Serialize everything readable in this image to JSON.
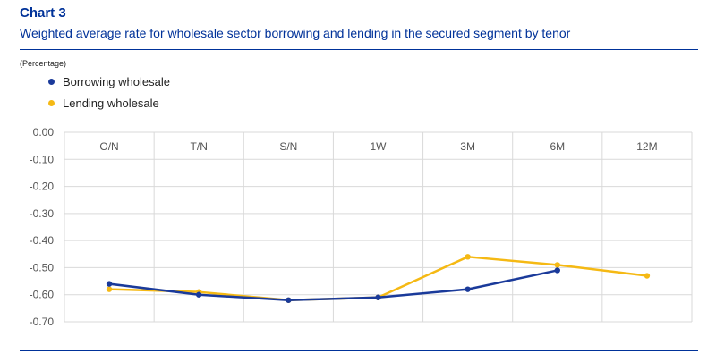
{
  "header": {
    "chart_number": "Chart 3",
    "title": "Weighted average rate for wholesale sector borrowing and lending in the secured segment by tenor",
    "unit_label": "(Percentage)"
  },
  "legend": [
    {
      "label": "Borrowing wholesale",
      "color": "#1a3a9a"
    },
    {
      "label": "Lending wholesale",
      "color": "#f5b914"
    }
  ],
  "chart_data": {
    "type": "line",
    "categories": [
      "O/N",
      "T/N",
      "S/N",
      "1W",
      "3M",
      "6M",
      "12M"
    ],
    "series": [
      {
        "name": "Borrowing wholesale",
        "color": "#1a3a9a",
        "values": [
          -0.56,
          -0.6,
          -0.62,
          -0.61,
          -0.58,
          -0.51,
          null
        ]
      },
      {
        "name": "Lending wholesale",
        "color": "#f5b914",
        "values": [
          -0.58,
          -0.59,
          -0.62,
          -0.61,
          -0.46,
          -0.49,
          -0.53
        ]
      }
    ],
    "ylim": [
      -0.7,
      0.0
    ],
    "yticks": [
      "0.00",
      "-0.10",
      "-0.20",
      "-0.30",
      "-0.40",
      "-0.50",
      "-0.60",
      "-0.70"
    ],
    "grid": true,
    "legend_position": "top-left",
    "xlabel": "",
    "ylabel": ""
  }
}
